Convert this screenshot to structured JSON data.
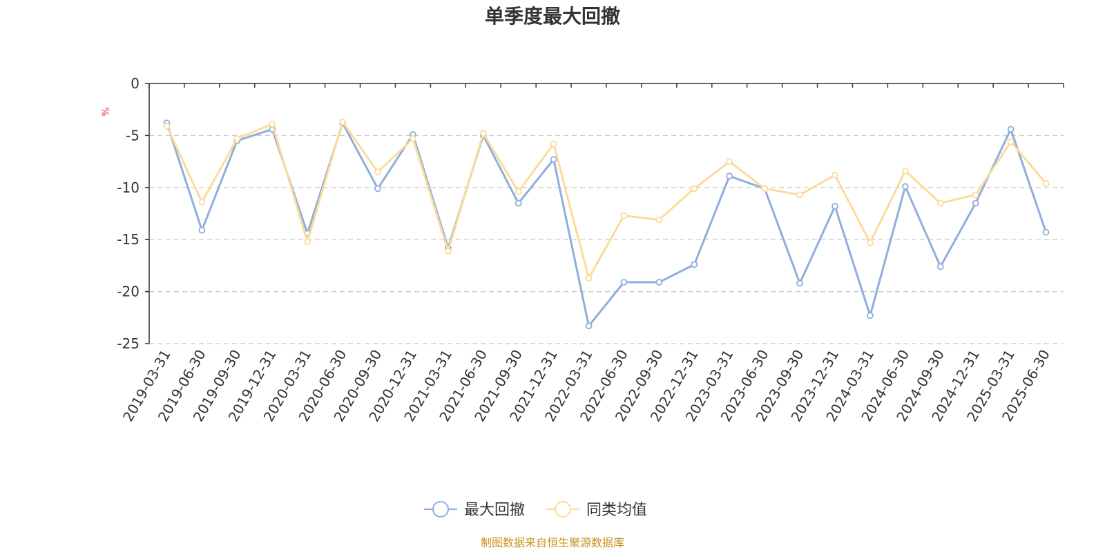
{
  "chart_data": {
    "type": "line",
    "title": "单季度最大回撤",
    "ylabel": "%",
    "ylim": [
      -25,
      0
    ],
    "yticks": [
      0,
      -5,
      -10,
      -15,
      -20,
      -25
    ],
    "grid": true,
    "legend_position": "bottom",
    "x": [
      "2019-03-31",
      "2019-06-30",
      "2019-09-30",
      "2019-12-31",
      "2020-03-31",
      "2020-06-30",
      "2020-09-30",
      "2020-12-31",
      "2021-03-31",
      "2021-06-30",
      "2021-09-30",
      "2021-12-31",
      "2022-03-31",
      "2022-06-30",
      "2022-09-30",
      "2022-12-31",
      "2023-03-31",
      "2023-06-30",
      "2023-09-30",
      "2023-12-31",
      "2024-03-31",
      "2024-06-30",
      "2024-09-30",
      "2024-12-31",
      "2025-03-31",
      "2025-06-30"
    ],
    "series": [
      {
        "name": "最大回撤",
        "color": "#8eaedb",
        "values": [
          -3.8,
          -14.1,
          -5.5,
          -4.4,
          -14.4,
          -3.8,
          -10.1,
          -4.9,
          -15.8,
          -5.0,
          -11.5,
          -7.3,
          -23.3,
          -19.1,
          -19.1,
          -17.4,
          -8.9,
          -10.1,
          -19.2,
          -11.8,
          -22.3,
          -9.9,
          -17.6,
          -11.5,
          -4.4,
          -14.3
        ]
      },
      {
        "name": "同类均值",
        "color": "#fcdb9a",
        "values": [
          -4.1,
          -11.4,
          -5.3,
          -3.9,
          -15.2,
          -3.7,
          -8.5,
          -5.3,
          -16.1,
          -4.8,
          -10.4,
          -5.8,
          -18.7,
          -12.7,
          -13.1,
          -10.1,
          -7.5,
          -10.1,
          -10.7,
          -8.8,
          -15.3,
          -8.4,
          -11.5,
          -10.7,
          -5.6,
          -9.6
        ]
      }
    ],
    "source_note": "制图数据来自恒生聚源数据库",
    "colors": {
      "axis": "#333333",
      "grid": "#c8c8c8",
      "unit": "#e03a3a",
      "source": "#c8911e"
    }
  }
}
